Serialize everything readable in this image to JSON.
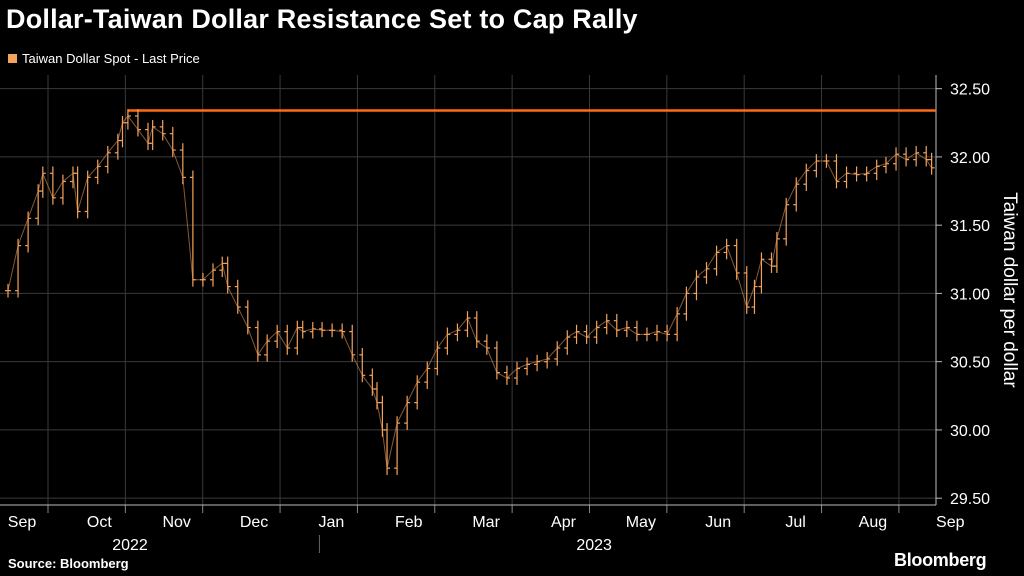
{
  "title": "Dollar-Taiwan Dollar Resistance Set to Cap Rally",
  "source": "Source: Bloomberg",
  "brand": "Bloomberg",
  "colors": {
    "series": "#f5a25d",
    "resistance": "#ff6a13",
    "grid": "#3a3a3a",
    "background": "#000000"
  },
  "chart_data": {
    "type": "line",
    "subtype": "ohlc",
    "title": "Dollar-Taiwan Dollar Resistance Set to Cap Rally",
    "legend": [
      "Taiwan Dollar Spot - Last Price"
    ],
    "ylabel": "Taiwan dollar per dollar",
    "y_axis_side": "right",
    "ylim": [
      29.45,
      32.6
    ],
    "y_ticks": [
      "32.50",
      "32.00",
      "31.50",
      "31.00",
      "30.50",
      "30.00",
      "29.50"
    ],
    "y_tick_values": [
      32.5,
      32.0,
      31.5,
      31.0,
      30.5,
      30.0,
      29.5
    ],
    "x_ticks": [
      "Sep",
      "Oct",
      "Nov",
      "Dec",
      "Jan",
      "Feb",
      "Mar",
      "Apr",
      "May",
      "Jun",
      "Jul",
      "Aug",
      "Sep"
    ],
    "year_labels": [
      {
        "label": "2022",
        "month_index": 1.5
      },
      {
        "label": "2023",
        "month_index": 7.5
      }
    ],
    "xlim_months": [
      0,
      12.1
    ],
    "grid": true,
    "resistance_level": 32.34,
    "series": [
      {
        "name": "Taiwan Dollar Spot - Last Price",
        "x_months": [
          0.0,
          0.13,
          0.26,
          0.39,
          0.45,
          0.58,
          0.71,
          0.84,
          0.9,
          1.03,
          1.16,
          1.29,
          1.42,
          1.48,
          1.55,
          1.68,
          1.81,
          1.87,
          2.0,
          2.13,
          2.26,
          2.39,
          2.52,
          2.65,
          2.77,
          2.84,
          2.97,
          3.1,
          3.23,
          3.35,
          3.48,
          3.61,
          3.74,
          3.81,
          3.94,
          4.06,
          4.19,
          4.32,
          4.45,
          4.58,
          4.71,
          4.77,
          4.84,
          4.9,
          5.03,
          5.16,
          5.29,
          5.42,
          5.55,
          5.68,
          5.81,
          5.94,
          6.06,
          6.19,
          6.32,
          6.45,
          6.58,
          6.71,
          6.84,
          6.97,
          7.1,
          7.23,
          7.35,
          7.48,
          7.61,
          7.74,
          7.87,
          8.0,
          8.13,
          8.26,
          8.39,
          8.52,
          8.65,
          8.77,
          8.9,
          9.03,
          9.16,
          9.29,
          9.42,
          9.55,
          9.65,
          9.74,
          9.87,
          9.94,
          10.06,
          10.19,
          10.32,
          10.45,
          10.58,
          10.71,
          10.84,
          10.97,
          11.1,
          11.23,
          11.35,
          11.48,
          11.61,
          11.74,
          11.87,
          11.94
        ],
        "values": [
          31.02,
          31.35,
          31.55,
          31.75,
          31.88,
          31.7,
          31.82,
          31.88,
          31.6,
          31.85,
          31.93,
          32.03,
          32.12,
          32.25,
          32.3,
          32.2,
          32.1,
          32.22,
          32.17,
          32.05,
          31.85,
          31.1,
          31.1,
          31.17,
          31.22,
          31.05,
          30.9,
          30.75,
          30.55,
          30.65,
          30.72,
          30.6,
          30.75,
          30.72,
          30.74,
          30.73,
          30.73,
          30.72,
          30.55,
          30.4,
          30.3,
          30.2,
          30.0,
          29.72,
          30.05,
          30.2,
          30.35,
          30.45,
          30.6,
          30.7,
          30.73,
          30.82,
          30.65,
          30.6,
          30.42,
          30.38,
          30.45,
          30.48,
          30.5,
          30.52,
          30.6,
          30.68,
          30.72,
          30.68,
          30.75,
          30.8,
          30.73,
          30.75,
          30.7,
          30.7,
          30.72,
          30.7,
          30.85,
          31.0,
          31.12,
          31.18,
          31.3,
          31.35,
          31.15,
          30.9,
          31.05,
          31.25,
          31.2,
          31.4,
          31.65,
          31.8,
          31.9,
          31.97,
          31.97,
          31.82,
          31.88,
          31.87,
          31.88,
          31.93,
          31.95,
          32.02,
          31.98,
          32.03,
          31.98,
          31.92
        ]
      }
    ]
  }
}
